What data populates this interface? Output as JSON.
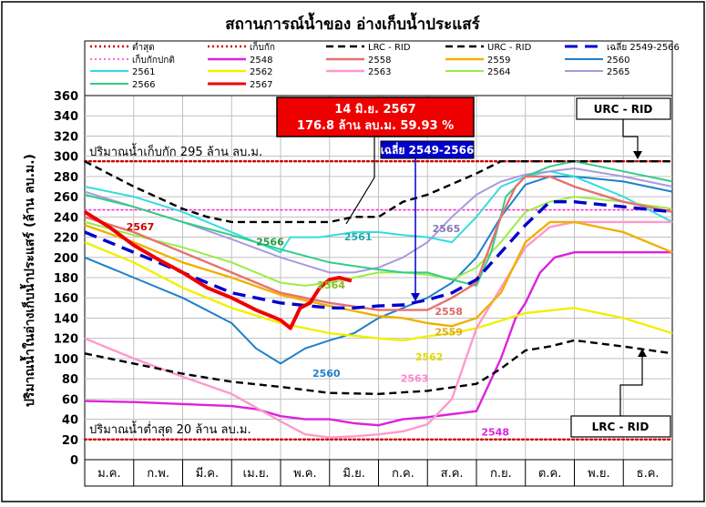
{
  "chart_data": {
    "type": "line",
    "title": "สถานการณ์น้ำของ อ่างเก็บน้ำประแสร์",
    "ylabel": "ปริมาณน้ำในอ่างเก็บน้ำประแสร์ (ล้าน ลบ.ม.)",
    "xlabel": "",
    "ylim": [
      0,
      360
    ],
    "yticks": [
      0,
      20,
      40,
      60,
      80,
      100,
      120,
      140,
      160,
      180,
      200,
      220,
      240,
      260,
      280,
      300,
      320,
      340,
      360
    ],
    "categories": [
      "ม.ค.",
      "ก.พ.",
      "มี.ค.",
      "เม.ย.",
      "พ.ค.",
      "มิ.ย.",
      "ก.ค.",
      "ส.ค.",
      "ก.ย.",
      "ต.ค.",
      "พ.ย.",
      "ธ.ค."
    ],
    "x_axis_note": "x values are months of the year, 0 = start of ม.ค., 12 = end of ธ.ค.",
    "grid": true,
    "legend_position": "top",
    "series": [
      {
        "name": "ต่ำสุด",
        "color": "#cc0000",
        "style": "dotted",
        "width": 2.4,
        "x": [
          0,
          12
        ],
        "values": [
          20,
          20
        ]
      },
      {
        "name": "เก็บกัก",
        "color": "#cc0000",
        "style": "dotted",
        "width": 2.4,
        "x": [
          0,
          12
        ],
        "values": [
          295,
          295
        ]
      },
      {
        "name": "LRC - RID",
        "color": "#000000",
        "style": "dash",
        "width": 2.4,
        "x": [
          0,
          1,
          2,
          3,
          4,
          5,
          6,
          7,
          8,
          8.5,
          9,
          9.5,
          10,
          11,
          12
        ],
        "values": [
          105,
          95,
          85,
          77,
          72,
          66,
          65,
          68,
          75,
          90,
          108,
          112,
          118,
          112,
          105
        ]
      },
      {
        "name": "URC - RID",
        "color": "#000000",
        "style": "dash",
        "width": 2.4,
        "x": [
          0,
          1,
          2,
          2.5,
          3,
          4,
          5,
          5.5,
          6,
          6.5,
          7,
          8,
          8.5,
          9,
          10,
          11,
          12
        ],
        "values": [
          295,
          270,
          248,
          240,
          235,
          235,
          235,
          240,
          240,
          255,
          262,
          283,
          295,
          295,
          295,
          295,
          295
        ]
      },
      {
        "name": "เฉลี่ย 2549-2566",
        "color": "#0000cc",
        "style": "longdash",
        "width": 3.4,
        "x": [
          0,
          1,
          2,
          3,
          4,
          5,
          5.5,
          6,
          6.5,
          7,
          7.5,
          8,
          8.5,
          9,
          9.5,
          10,
          11,
          12
        ],
        "values": [
          225,
          205,
          185,
          165,
          155,
          150,
          150,
          152,
          153,
          158,
          165,
          178,
          205,
          232,
          255,
          255,
          250,
          245
        ]
      },
      {
        "name": "เก็บกักปกติ",
        "color": "#ff33cc",
        "style": "dotted",
        "width": 1.6,
        "x": [
          0,
          12
        ],
        "values": [
          247,
          247
        ]
      },
      {
        "name": "2548",
        "color": "#dd22dd",
        "style": "solid",
        "width": 2.4,
        "x": [
          0,
          1,
          2,
          3,
          3.5,
          4,
          4.5,
          5,
          5.5,
          6,
          6.5,
          7,
          7.5,
          8,
          8.5,
          8.8,
          9,
          9.3,
          9.6,
          10,
          11,
          12
        ],
        "values": [
          58,
          57,
          55,
          53,
          50,
          43,
          40,
          40,
          36,
          34,
          40,
          42,
          45,
          48,
          100,
          140,
          155,
          185,
          200,
          205,
          205,
          205
        ]
      },
      {
        "name": "2558",
        "color": "#e87070",
        "style": "solid",
        "width": 2.4,
        "x": [
          0,
          1,
          2,
          3,
          4,
          5,
          6,
          7,
          7.5,
          8,
          8.5,
          8.8,
          9,
          9.5,
          10,
          11,
          12
        ],
        "values": [
          240,
          225,
          205,
          185,
          165,
          155,
          148,
          148,
          160,
          175,
          240,
          270,
          280,
          280,
          270,
          255,
          245
        ]
      },
      {
        "name": "2559",
        "color": "#f0b000",
        "style": "solid",
        "width": 2.4,
        "x": [
          0,
          1,
          2,
          3,
          4,
          5,
          6,
          6.5,
          7,
          7.5,
          8,
          8.5,
          9,
          9.5,
          10,
          11,
          12
        ],
        "values": [
          232,
          215,
          195,
          180,
          163,
          152,
          142,
          140,
          135,
          132,
          140,
          165,
          215,
          235,
          235,
          225,
          205
        ]
      },
      {
        "name": "2560",
        "color": "#1f80c8",
        "style": "solid",
        "width": 2.0,
        "x": [
          0,
          1,
          2,
          3,
          3.5,
          4,
          4.5,
          5,
          5.5,
          6,
          6.5,
          7,
          7.5,
          8,
          8.5,
          9,
          9.5,
          10,
          11,
          12
        ],
        "values": [
          200,
          180,
          160,
          135,
          110,
          95,
          110,
          118,
          125,
          140,
          150,
          160,
          175,
          200,
          240,
          272,
          280,
          280,
          275,
          265
        ]
      },
      {
        "name": "2561",
        "color": "#33dddd",
        "style": "solid",
        "width": 2.0,
        "x": [
          0,
          1,
          2,
          3,
          4,
          4.2,
          4.8,
          5.5,
          6,
          6.5,
          7,
          7.5,
          8,
          8.5,
          9,
          9.5,
          10,
          11,
          12
        ],
        "values": [
          270,
          260,
          245,
          225,
          205,
          220,
          220,
          225,
          225,
          222,
          220,
          215,
          240,
          270,
          280,
          285,
          280,
          260,
          235
        ]
      },
      {
        "name": "2562",
        "color": "#f0f000",
        "style": "solid",
        "width": 2.4,
        "x": [
          0,
          1,
          2,
          3,
          4,
          5,
          6,
          6.5,
          7,
          7.5,
          8,
          9,
          10,
          11,
          12
        ],
        "values": [
          215,
          195,
          170,
          150,
          135,
          125,
          120,
          118,
          122,
          125,
          130,
          145,
          150,
          140,
          125
        ]
      },
      {
        "name": "2563",
        "color": "#ff99cc",
        "style": "solid",
        "width": 2.4,
        "x": [
          0,
          1,
          2,
          3,
          4,
          4.5,
          5,
          5.5,
          6,
          6.5,
          7,
          7.5,
          8,
          8.5,
          9,
          9.5,
          10,
          11,
          12
        ],
        "values": [
          120,
          100,
          82,
          65,
          38,
          25,
          22,
          23,
          25,
          28,
          35,
          60,
          130,
          170,
          210,
          230,
          235,
          235,
          235
        ]
      },
      {
        "name": "2564",
        "color": "#99ee44",
        "style": "solid",
        "width": 2.0,
        "x": [
          0,
          1,
          2,
          3,
          4,
          4.5,
          5,
          5.5,
          6,
          6.5,
          7,
          7.5,
          8,
          8.5,
          9,
          9.5,
          10,
          11,
          12
        ],
        "values": [
          235,
          222,
          210,
          195,
          175,
          172,
          175,
          180,
          185,
          185,
          183,
          178,
          190,
          215,
          245,
          255,
          260,
          255,
          248
        ]
      },
      {
        "name": "2565",
        "color": "#aa99dd",
        "style": "solid",
        "width": 2.0,
        "x": [
          0,
          1,
          2,
          3,
          4,
          5,
          5.5,
          6,
          6.5,
          7,
          7.5,
          8,
          8.5,
          9,
          9.5,
          10,
          11,
          12
        ],
        "values": [
          265,
          250,
          235,
          218,
          200,
          185,
          185,
          190,
          200,
          215,
          240,
          262,
          275,
          282,
          285,
          288,
          280,
          270
        ]
      },
      {
        "name": "2566",
        "color": "#33cc88",
        "style": "solid",
        "width": 2.0,
        "x": [
          0,
          1,
          2,
          3,
          4,
          5,
          6,
          6.5,
          7,
          7.5,
          8,
          8.3,
          8.6,
          9,
          9.5,
          10,
          11,
          12
        ],
        "values": [
          262,
          250,
          235,
          222,
          208,
          195,
          188,
          185,
          185,
          178,
          172,
          205,
          260,
          280,
          290,
          295,
          285,
          275
        ]
      },
      {
        "name": "2567",
        "color": "#ee0000",
        "style": "solid",
        "width": 4.0,
        "x": [
          0,
          0.5,
          1,
          1.5,
          2,
          2.5,
          3,
          3.5,
          3.8,
          4,
          4.2,
          4.4,
          4.6,
          4.8,
          5,
          5.2,
          5.45
        ],
        "values": [
          245,
          230,
          212,
          198,
          185,
          170,
          160,
          148,
          142,
          138,
          130,
          150,
          155,
          170,
          178,
          180,
          176.8
        ]
      }
    ],
    "series_labels": [
      {
        "text": "2567",
        "color": "#cc0000",
        "x": 0.85,
        "y": 227
      },
      {
        "text": "2566",
        "color": "#229944",
        "x": 3.5,
        "y": 212
      },
      {
        "text": "2561",
        "color": "#22aaaa",
        "x": 5.3,
        "y": 217
      },
      {
        "text": "2565",
        "color": "#8877bb",
        "x": 7.1,
        "y": 225
      },
      {
        "text": "2564",
        "color": "#88bb22",
        "x": 4.75,
        "y": 169
      },
      {
        "text": "2558",
        "color": "#dd6666",
        "x": 7.15,
        "y": 143
      },
      {
        "text": "2559",
        "color": "#ddaa22",
        "x": 7.15,
        "y": 123
      },
      {
        "text": "2562",
        "color": "#dddd00",
        "x": 6.75,
        "y": 98
      },
      {
        "text": "2560",
        "color": "#1f80c8",
        "x": 4.65,
        "y": 82
      },
      {
        "text": "2563",
        "color": "#ff88cc",
        "x": 6.45,
        "y": 77
      },
      {
        "text": "2548",
        "color": "#dd22dd",
        "x": 8.1,
        "y": 24
      }
    ],
    "annotations": {
      "current_date": "14 มิ.ย. 2567",
      "current_value": "176.8 ล้าน ลบ.ม. 59.93 %",
      "avg_label": "เฉลี่ย 2549-2566",
      "urc_label": "URC - RID",
      "lrc_label": "LRC - RID",
      "storage_line_label": "ปริมาณน้ำเก็บกัก 295 ล้าน ลบ.ม.",
      "min_line_label": "ปริมาณน้ำต่ำสุด 20 ล้าน ลบ.ม."
    }
  }
}
